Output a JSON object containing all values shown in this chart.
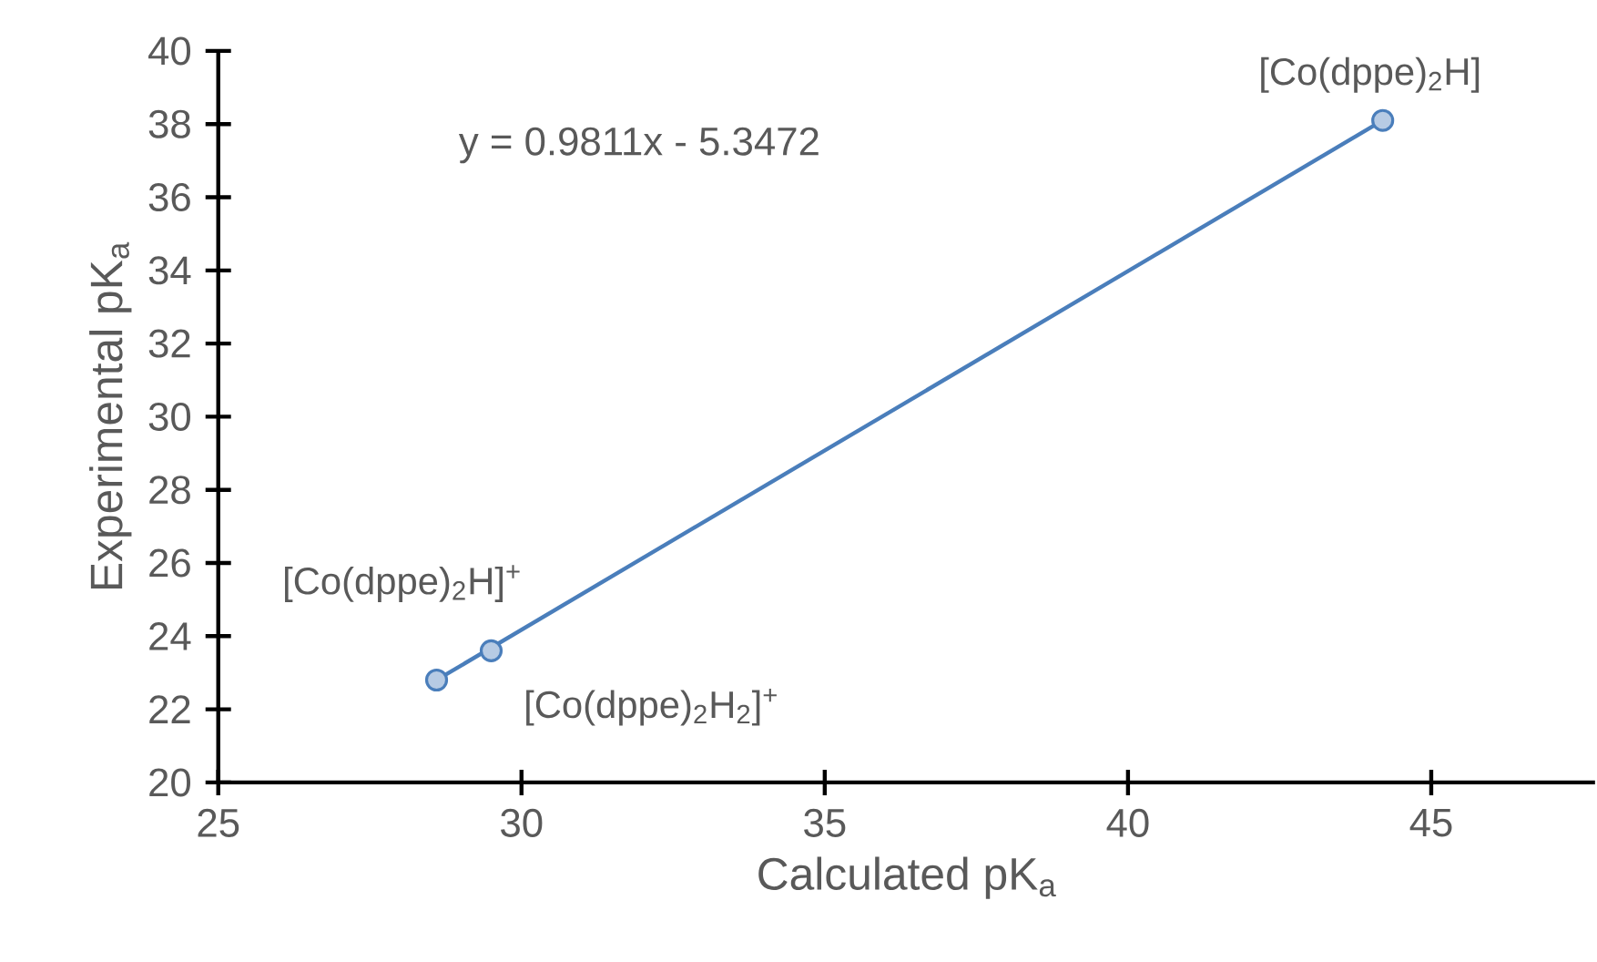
{
  "chart_data": {
    "type": "scatter",
    "xlabel": "Calculated pK$_{a}$",
    "ylabel": "Experimental pK$_{a}$",
    "xlim": [
      25,
      47.7
    ],
    "ylim": [
      20,
      40
    ],
    "xticks": [
      25,
      30,
      35,
      40,
      45
    ],
    "yticks": [
      20,
      22,
      24,
      26,
      28,
      30,
      32,
      34,
      36,
      38,
      40
    ],
    "grid": false,
    "series": [
      {
        "marker": "circle",
        "color": "#4a7ebb",
        "x": [
          28.6,
          29.5,
          44.2
        ],
        "values": [
          22.8,
          23.6,
          38.1
        ]
      },
      {
        "type": "line",
        "color": "#4a7ebb",
        "x": [
          28.6,
          44.2
        ],
        "values": [
          22.8,
          38.1
        ]
      }
    ],
    "annotations": [
      "y = 0.9811x - 5.3472",
      {
        "text": "[Co(dppe)$_{2}$H]$^{+}$",
        "x": 28.6,
        "y": 22.8
      },
      {
        "text": "[Co(dppe)$_{2}$H$_{2}$]$^{+}$",
        "x": 29.5,
        "y": 23.6
      },
      {
        "text": "[Co(dppe)$_{2}$H]",
        "x": 44.2,
        "y": 38.1
      }
    ]
  }
}
